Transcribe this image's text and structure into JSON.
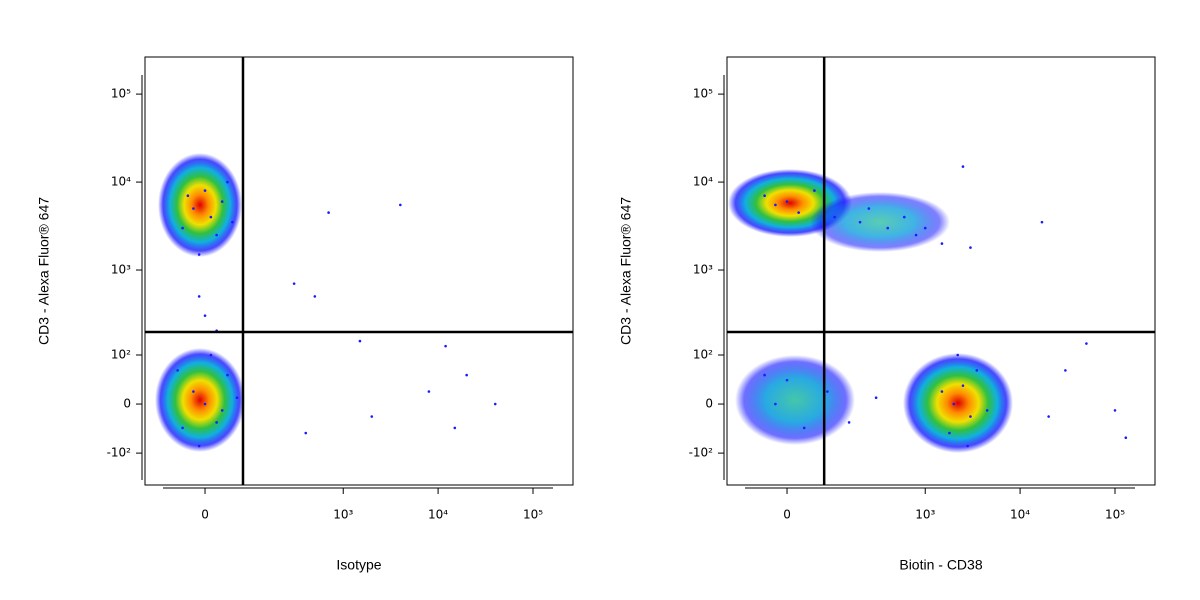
{
  "chart_data": [
    {
      "type": "scatter",
      "x_label": "Isotype",
      "y_label": "CD3 - Alexa Fluor® 647",
      "xscale": "biexponential",
      "yscale": "biexponential",
      "color": "#1a1aff",
      "xlim": [
        -142,
        264000
      ],
      "ylim": [
        -246,
        264000
      ],
      "xticks": [
        0,
        {
          "value": 1000,
          "label": "10³"
        },
        {
          "value": 10000,
          "label": "10⁴"
        },
        {
          "value": 100000,
          "label": "10⁵"
        }
      ],
      "yticks": [
        {
          "value": -100,
          "label": "-10²"
        },
        0,
        {
          "value": 100,
          "label": "10²"
        },
        {
          "value": 1000,
          "label": "10³"
        },
        {
          "value": 10000,
          "label": "10⁴"
        },
        {
          "value": 100000,
          "label": "10⁵"
        }
      ],
      "gates": {
        "x": 74,
        "y": 193
      },
      "x": [
        -20,
        10,
        30,
        -40,
        0,
        20,
        -10,
        40,
        -30,
        50,
        0,
        -20,
        20,
        40,
        -40,
        10,
        -10,
        60,
        -50,
        30,
        0,
        -10,
        20,
        700,
        4000,
        300,
        500,
        1500,
        12000,
        20000,
        40000,
        2000,
        8000,
        400,
        15000
      ],
      "y": [
        5000,
        4000,
        6000,
        3000,
        8000,
        2500,
        1500,
        10000,
        7000,
        3500,
        0,
        20,
        -30,
        50,
        -40,
        100,
        -80,
        10,
        60,
        -10,
        300,
        500,
        200,
        4500,
        5500,
        700,
        500,
        150,
        130,
        50,
        0,
        -20,
        20,
        -50,
        -40
      ]
    },
    {
      "type": "scatter",
      "x_label": "Biotin - CD38",
      "y_label": "CD3 - Alexa Fluor® 647",
      "xscale": "biexponential",
      "yscale": "biexponential",
      "color": "#1a1aff",
      "xlim": [
        -142,
        264000
      ],
      "ylim": [
        -246,
        264000
      ],
      "xticks": [
        0,
        {
          "value": 1000,
          "label": "10³"
        },
        {
          "value": 10000,
          "label": "10⁴"
        },
        {
          "value": 100000,
          "label": "10⁵"
        }
      ],
      "yticks": [
        {
          "value": -100,
          "label": "-10²"
        },
        0,
        {
          "value": 100,
          "label": "10²"
        },
        {
          "value": 1000,
          "label": "10³"
        },
        {
          "value": 10000,
          "label": "10⁴"
        },
        {
          "value": 100000,
          "label": "10⁵"
        }
      ],
      "gates": {
        "x": 72,
        "y": 193
      },
      "x": [
        -20,
        0,
        20,
        -40,
        50,
        100,
        200,
        400,
        800,
        1500,
        3000,
        250,
        600,
        1000,
        2500,
        -20,
        0,
        30,
        -40,
        80,
        150,
        300,
        2000,
        2500,
        3000,
        1800,
        3500,
        1500,
        4500,
        2200,
        2800,
        17000,
        50000,
        30000,
        100000,
        130000,
        20000
      ],
      "y": [
        5500,
        6000,
        4500,
        7000,
        8000,
        4000,
        3500,
        3000,
        2500,
        2000,
        1800,
        5000,
        4000,
        3000,
        15000,
        0,
        40,
        -40,
        50,
        20,
        -30,
        10,
        0,
        30,
        -20,
        -50,
        60,
        20,
        -10,
        100,
        -80,
        3500,
        140,
        60,
        -10,
        -60,
        -20
      ]
    }
  ]
}
